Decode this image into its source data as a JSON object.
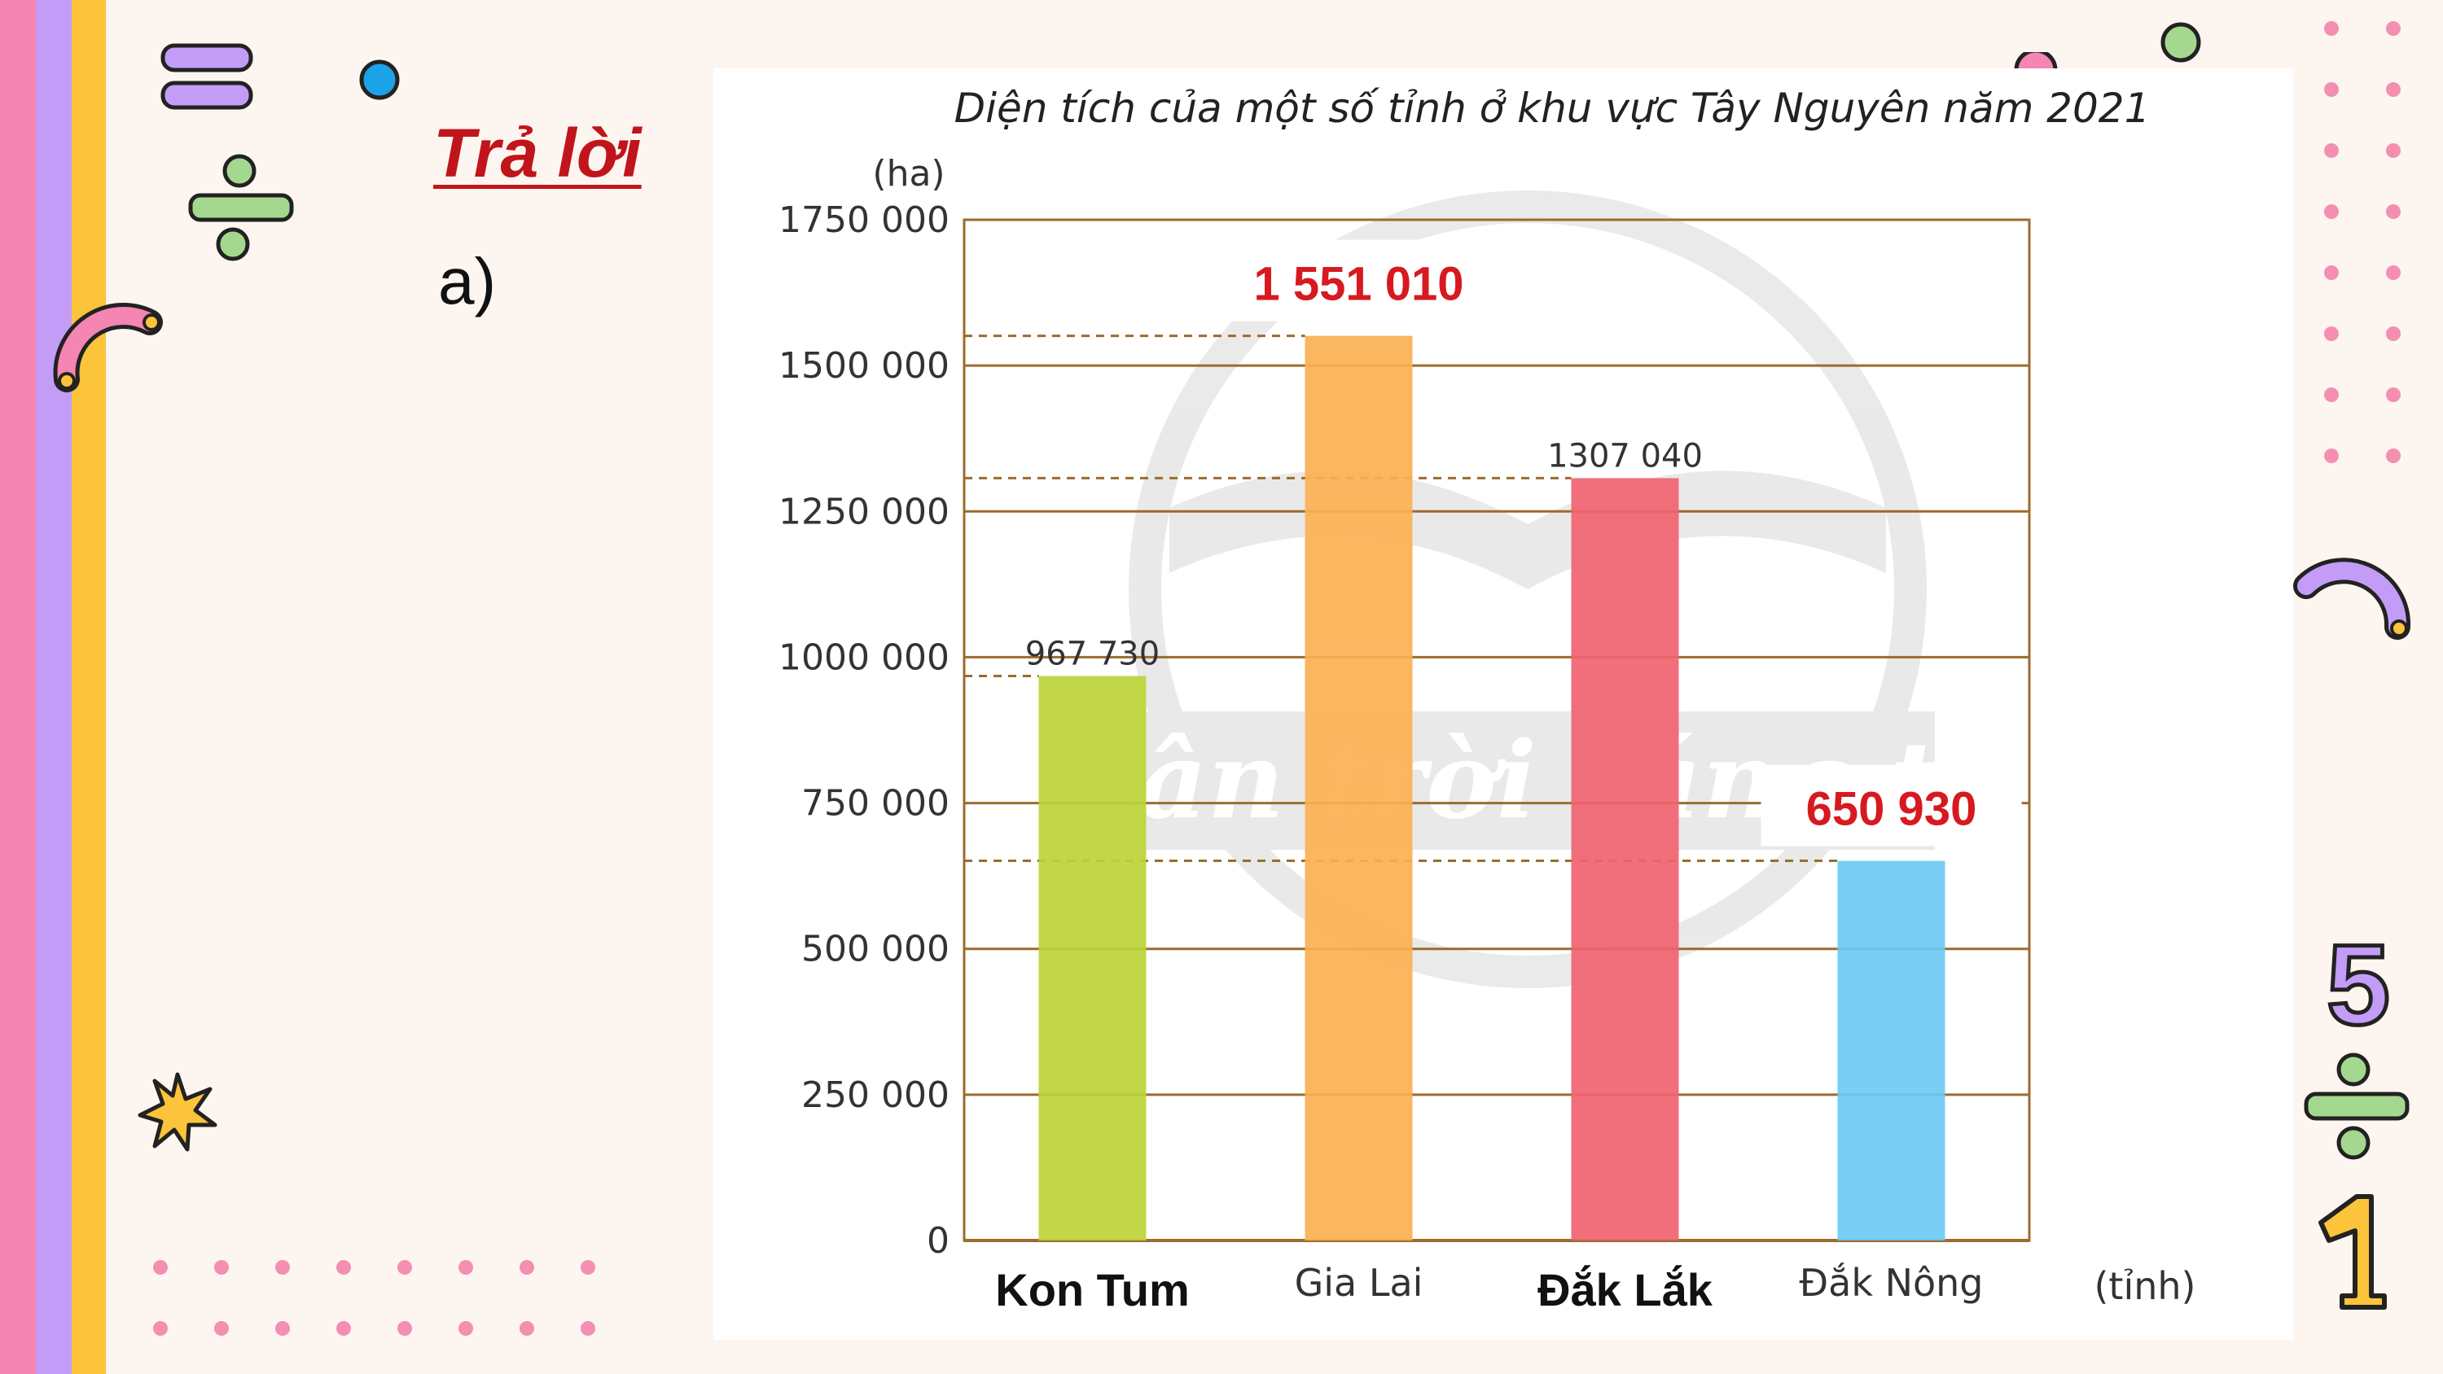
{
  "slide": {
    "heading": "Trả lời",
    "part_label": "a)"
  },
  "chart_data": {
    "type": "bar",
    "title": "Diện tích của một số tỉnh ở khu vực Tây Nguyên năm 2021",
    "ylabel": "(ha)",
    "xlabel": "(tỉnh)",
    "ylim": [
      0,
      1750000
    ],
    "yticks": [
      0,
      250000,
      500000,
      750000,
      1000000,
      1250000,
      1500000,
      1750000
    ],
    "ytick_labels": [
      "0",
      "250 000",
      "500 000",
      "750 000",
      "1000 000",
      "1250 000",
      "1500 000",
      "1750 000"
    ],
    "categories": [
      "Kon Tum",
      "Gia Lai",
      "Đắk Lắk",
      "Đắk Nông"
    ],
    "values": [
      967730,
      1551010,
      1307040,
      650930
    ],
    "value_labels": [
      "967 730",
      "1 551 010",
      "1307 040",
      "650 930"
    ],
    "highlighted_values": [
      false,
      true,
      false,
      true
    ],
    "bold_categories": [
      true,
      false,
      true,
      false
    ],
    "colors": [
      "#bcd437",
      "#fbb052",
      "#f0636f",
      "#6ccaf3"
    ],
    "grid": true,
    "watermark": "Chân trời sáng tạo"
  },
  "colors": {
    "grid_line": "#9c6b2e",
    "accent_red": "#d71920",
    "background": "#fdf5f0"
  }
}
